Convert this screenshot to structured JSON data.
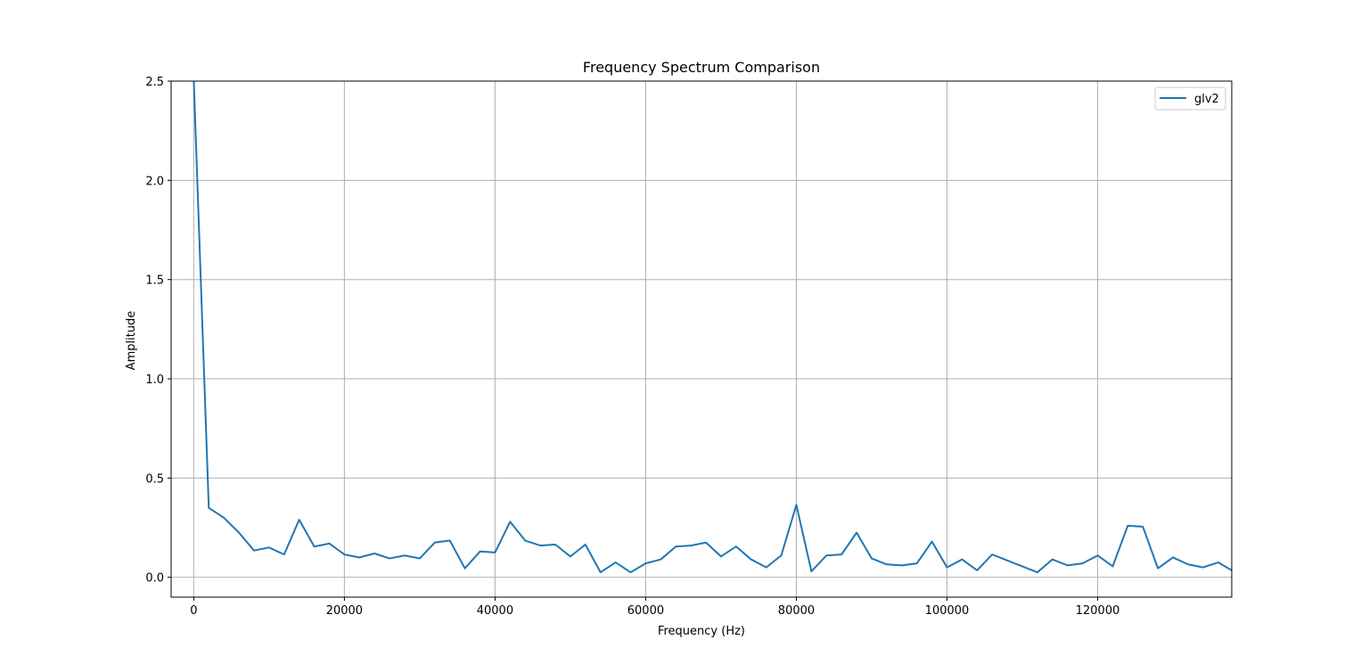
{
  "chart_data": {
    "type": "line",
    "title": "Frequency Spectrum Comparison",
    "xlabel": "Frequency (Hz)",
    "ylabel": "Amplitude",
    "xlim": [
      -3000,
      137800
    ],
    "ylim": [
      -0.1,
      2.5
    ],
    "xticks": [
      0,
      20000,
      40000,
      60000,
      80000,
      100000,
      120000
    ],
    "xtick_labels": [
      "0",
      "20000",
      "40000",
      "60000",
      "80000",
      "100000",
      "120000"
    ],
    "yticks": [
      0.0,
      0.5,
      1.0,
      1.5,
      2.0,
      2.5
    ],
    "ytick_labels": [
      "0.0",
      "0.5",
      "1.0",
      "1.5",
      "2.0",
      "2.5"
    ],
    "grid": true,
    "legend_position": "top-right",
    "series": [
      {
        "name": "glv2",
        "color": "#1f77b4",
        "x": [
          0,
          2000,
          4000,
          6000,
          8000,
          10000,
          12000,
          14000,
          16000,
          18000,
          20000,
          22000,
          24000,
          26000,
          28000,
          30000,
          32000,
          34000,
          36000,
          38000,
          40000,
          42000,
          44000,
          46000,
          48000,
          50000,
          52000,
          54000,
          56000,
          58000,
          60000,
          62000,
          64000,
          66000,
          68000,
          70000,
          72000,
          74000,
          76000,
          78000,
          80000,
          82000,
          84000,
          86000,
          88000,
          90000,
          92000,
          94000,
          96000,
          98000,
          100000,
          102000,
          104000,
          106000,
          108000,
          110000,
          112000,
          114000,
          116000,
          118000,
          120000,
          122000,
          124000,
          126000,
          128000,
          130000,
          132000,
          134000,
          136000,
          137800
        ],
        "y": [
          2.51,
          0.35,
          0.3,
          0.225,
          0.135,
          0.15,
          0.115,
          0.29,
          0.155,
          0.17,
          0.115,
          0.1,
          0.12,
          0.095,
          0.11,
          0.095,
          0.175,
          0.185,
          0.045,
          0.13,
          0.125,
          0.28,
          0.185,
          0.16,
          0.165,
          0.105,
          0.165,
          0.025,
          0.075,
          0.025,
          0.07,
          0.09,
          0.155,
          0.16,
          0.175,
          0.105,
          0.155,
          0.09,
          0.05,
          0.11,
          0.365,
          0.03,
          0.11,
          0.115,
          0.225,
          0.095,
          0.065,
          0.06,
          0.07,
          0.18,
          0.05,
          0.09,
          0.035,
          0.115,
          0.085,
          0.055,
          0.025,
          0.09,
          0.06,
          0.07,
          0.11,
          0.055,
          0.26,
          0.255,
          0.045,
          0.1,
          0.065,
          0.05,
          0.075,
          0.035
        ]
      }
    ]
  }
}
